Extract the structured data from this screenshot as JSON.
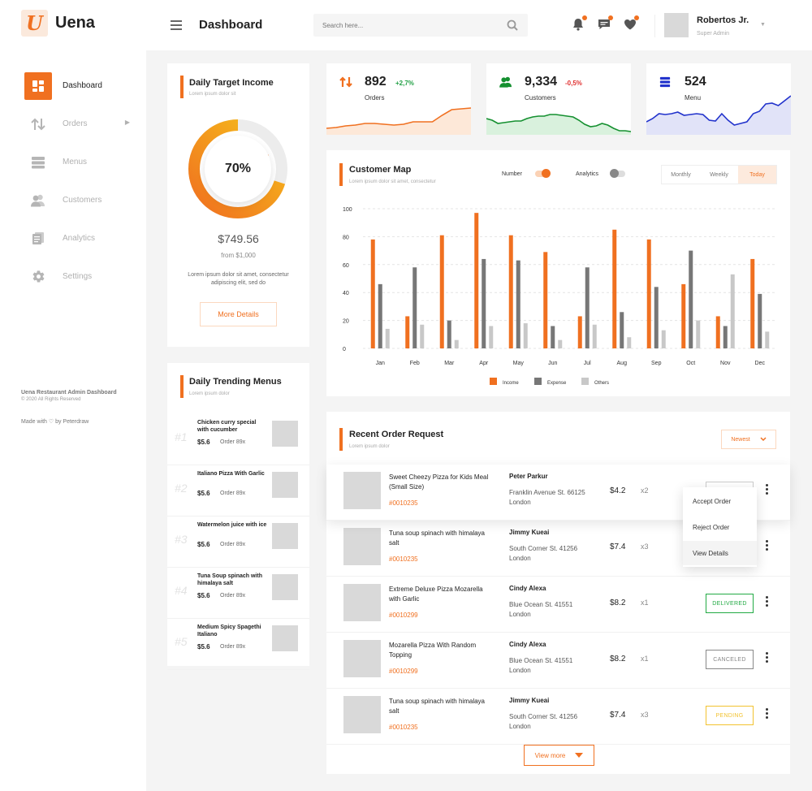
{
  "brand": {
    "name": "Uena",
    "logo_letter": "U"
  },
  "sidebar": {
    "items": [
      {
        "label": "Dashboard",
        "icon": "grid-icon",
        "active": true
      },
      {
        "label": "Orders",
        "icon": "sort-arrows-icon",
        "has_submenu": true
      },
      {
        "label": "Menus",
        "icon": "list-icon"
      },
      {
        "label": "Customers",
        "icon": "users-icon"
      },
      {
        "label": "Analytics",
        "icon": "document-icon"
      },
      {
        "label": "Settings",
        "icon": "gear-icon"
      }
    ],
    "footer_title": "Uena Restaurant Admin Dashboard",
    "footer_copyright": "© 2020 All Rights Reserved",
    "footer_made": "Made with ♡ by Peterdraw"
  },
  "header": {
    "title": "Dashboard",
    "search_placeholder": "Search here...",
    "user_name": "Robertos Jr.",
    "user_role": "Super Admin"
  },
  "income": {
    "title": "Daily Target Income",
    "subtitle": "Lorem ipsum dolor sit",
    "percent_label": "70%",
    "percent": 0.7,
    "amount": "$749.56",
    "from": "from $1,000",
    "description": "Lorem ipsum dolor sit amet, consectetur adipiscing elit, sed do",
    "button": "More Details"
  },
  "stats": [
    {
      "value": "892",
      "change": "+2,7%",
      "change_color": "#22a045",
      "label": "Orders",
      "color": "#f07020",
      "fill": "#fde8d8",
      "spark": [
        8,
        9,
        11,
        12,
        14,
        14,
        13,
        12,
        13,
        16,
        16,
        16,
        24,
        31,
        32,
        33
      ]
    },
    {
      "value": "9,334",
      "change": "-0,5%",
      "change_color": "#e03030",
      "label": "Customers",
      "color": "#159030",
      "fill": "#d9f1dd",
      "spark": [
        20,
        18,
        14,
        15,
        16,
        17,
        17,
        20,
        22,
        23,
        23,
        25,
        25,
        24,
        23,
        22,
        18,
        13,
        10,
        11,
        14,
        12,
        8,
        5,
        5,
        4
      ]
    },
    {
      "value": "524",
      "change": "",
      "change_color": "#333",
      "label": "Menu",
      "color": "#2233cc",
      "fill": "#e1e3f8",
      "spark": [
        16,
        20,
        26,
        25,
        26,
        28,
        24,
        25,
        26,
        25,
        18,
        17,
        26,
        18,
        12,
        14,
        16,
        26,
        29,
        38,
        39,
        36,
        42,
        48
      ]
    }
  ],
  "customer_map": {
    "title": "Customer Map",
    "subtitle": "Lorem ipsum dolor sit amet, consectetur",
    "toggles": [
      {
        "label": "Number",
        "on": true
      },
      {
        "label": "Analytics",
        "on": false
      }
    ],
    "periods": [
      {
        "label": "Monthly"
      },
      {
        "label": "Weekly"
      },
      {
        "label": "Today",
        "active": true
      }
    ]
  },
  "chart_data": {
    "type": "bar",
    "categories": [
      "Jan",
      "Feb",
      "Mar",
      "Apr",
      "May",
      "Jun",
      "Jul",
      "Aug",
      "Sep",
      "Oct",
      "Nov",
      "Dec"
    ],
    "series": [
      {
        "name": "Income",
        "color": "#f07020",
        "values": [
          78,
          23,
          81,
          97,
          81,
          69,
          23,
          85,
          78,
          46,
          23,
          64
        ]
      },
      {
        "name": "Expense",
        "color": "#777777",
        "values": [
          46,
          58,
          20,
          64,
          63,
          16,
          58,
          26,
          44,
          70,
          16,
          39
        ]
      },
      {
        "name": "Others",
        "color": "#c8c8c8",
        "values": [
          14,
          17,
          6,
          16,
          18,
          6,
          17,
          8,
          13,
          20,
          53,
          12
        ]
      }
    ],
    "yticks": [
      0,
      20,
      40,
      60,
      80,
      100
    ],
    "ylim": [
      0,
      100
    ],
    "grid": true,
    "legend_position": "bottom"
  },
  "trending": {
    "title": "Daily Trending Menus",
    "subtitle": "Lorem ipsum dolor",
    "items": [
      {
        "rank": "#1",
        "name": "Chicken curry special with cucumber",
        "price": "$5.6",
        "orders": "Order 89x"
      },
      {
        "rank": "#2",
        "name": "Italiano Pizza With Garlic",
        "price": "$5.6",
        "orders": "Order 89x"
      },
      {
        "rank": "#3",
        "name": "Watermelon juice with ice",
        "price": "$5.6",
        "orders": "Order 89x"
      },
      {
        "rank": "#4",
        "name": "Tuna Soup spinach with himalaya salt",
        "price": "$5.6",
        "orders": "Order 89x"
      },
      {
        "rank": "#5",
        "name": "Medium Spicy Spagethi Italiano",
        "price": "$5.6",
        "orders": "Order 89x"
      }
    ]
  },
  "orders": {
    "title": "Recent Order Request",
    "subtitle": "Lorem ipsum dolor",
    "sort_label": "Newest",
    "view_more": "View more",
    "rows": [
      {
        "name": "Sweet Cheezy Pizza for Kids Meal (Small Size)",
        "id": "#0010235",
        "customer": "Peter Parkur",
        "address": "Franklin Avenue St. 66125 London",
        "price": "$4.2",
        "qty": "x2",
        "status": "",
        "status_color": "#cccccc"
      },
      {
        "name": "Tuna soup spinach with himalaya salt",
        "id": "#0010235",
        "customer": "Jimmy Kueai",
        "address": "South Corner St. 41256 London",
        "price": "$7.4",
        "qty": "x3",
        "status": "",
        "status_color": "#cccccc"
      },
      {
        "name": "Extreme Deluxe Pizza Mozarella with Garlic",
        "id": "#0010299",
        "customer": "Cindy Alexa",
        "address": "Blue Ocean St. 41551 London",
        "price": "$8.2",
        "qty": "x1",
        "status": "DELIVERED",
        "status_color": "#22aa44"
      },
      {
        "name": "Mozarella Pizza With Random Topping",
        "id": "#0010299",
        "customer": "Cindy Alexa",
        "address": "Blue Ocean St. 41551 London",
        "price": "$8.2",
        "qty": "x1",
        "status": "CANCELED",
        "status_color": "#888888"
      },
      {
        "name": "Tuna soup spinach with himalaya salt",
        "id": "#0010235",
        "customer": "Jimmy Kueai",
        "address": "South Corner St. 41256 London",
        "price": "$7.4",
        "qty": "x3",
        "status": "PENDING",
        "status_color": "#f2c230"
      }
    ],
    "menu_items": [
      {
        "label": "Accept Order"
      },
      {
        "label": "Reject Order"
      },
      {
        "label": "View Details",
        "active": true
      }
    ]
  }
}
